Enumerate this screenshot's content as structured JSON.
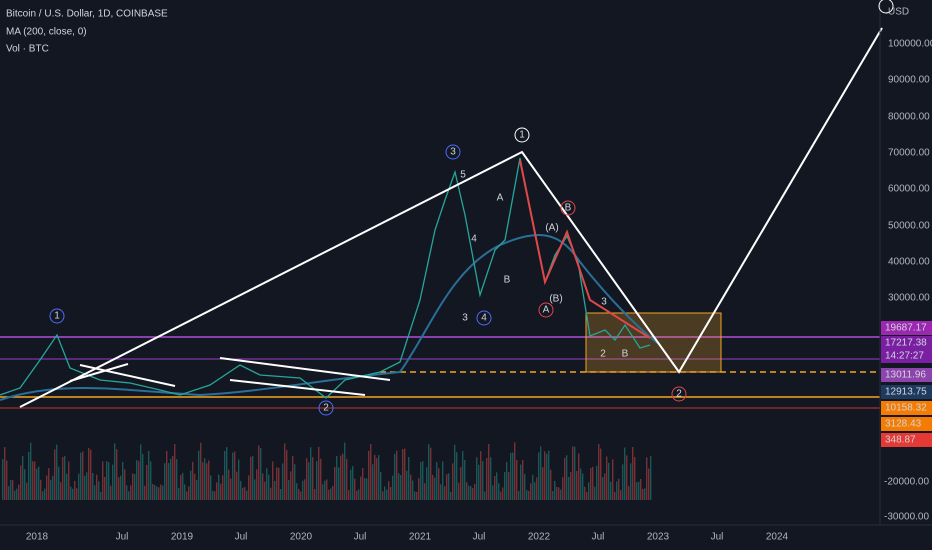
{
  "header": {
    "symbol": "Bitcoin / U.S. Dollar, 1D, COINBASE",
    "indicators": [
      "MA (200, close, 0)",
      "Vol · BTC"
    ]
  },
  "price_axis": {
    "currency": "USD",
    "labels": [
      "100000.00",
      "90000.00",
      "80000.00",
      "70000.00",
      "60000.00",
      "50000.00",
      "40000.00",
      "30000.00"
    ],
    "volume_labels": [
      "-20000.00",
      "-30000.00"
    ]
  },
  "time_axis": {
    "labels": [
      "2018",
      "Jul",
      "2019",
      "Jul",
      "2020",
      "Jul",
      "2021",
      "Jul",
      "2022",
      "Jul",
      "2023",
      "Jul",
      "2024"
    ]
  },
  "price_tags": [
    {
      "text": "19687.17"
    },
    {
      "text": "17217.38"
    },
    {
      "text": "14:27:27"
    },
    {
      "text": "13011.96"
    },
    {
      "text": "12913.75"
    },
    {
      "text": "10158.32"
    },
    {
      "text": "3128.43"
    },
    {
      "text": "348.87"
    }
  ],
  "wave_labels": [
    "1",
    "3",
    "1",
    "2",
    "(A)",
    "(B)",
    "A",
    "B",
    "2",
    "A",
    "B",
    "4",
    "5",
    "3",
    "4",
    "3",
    "2",
    "B"
  ]
}
